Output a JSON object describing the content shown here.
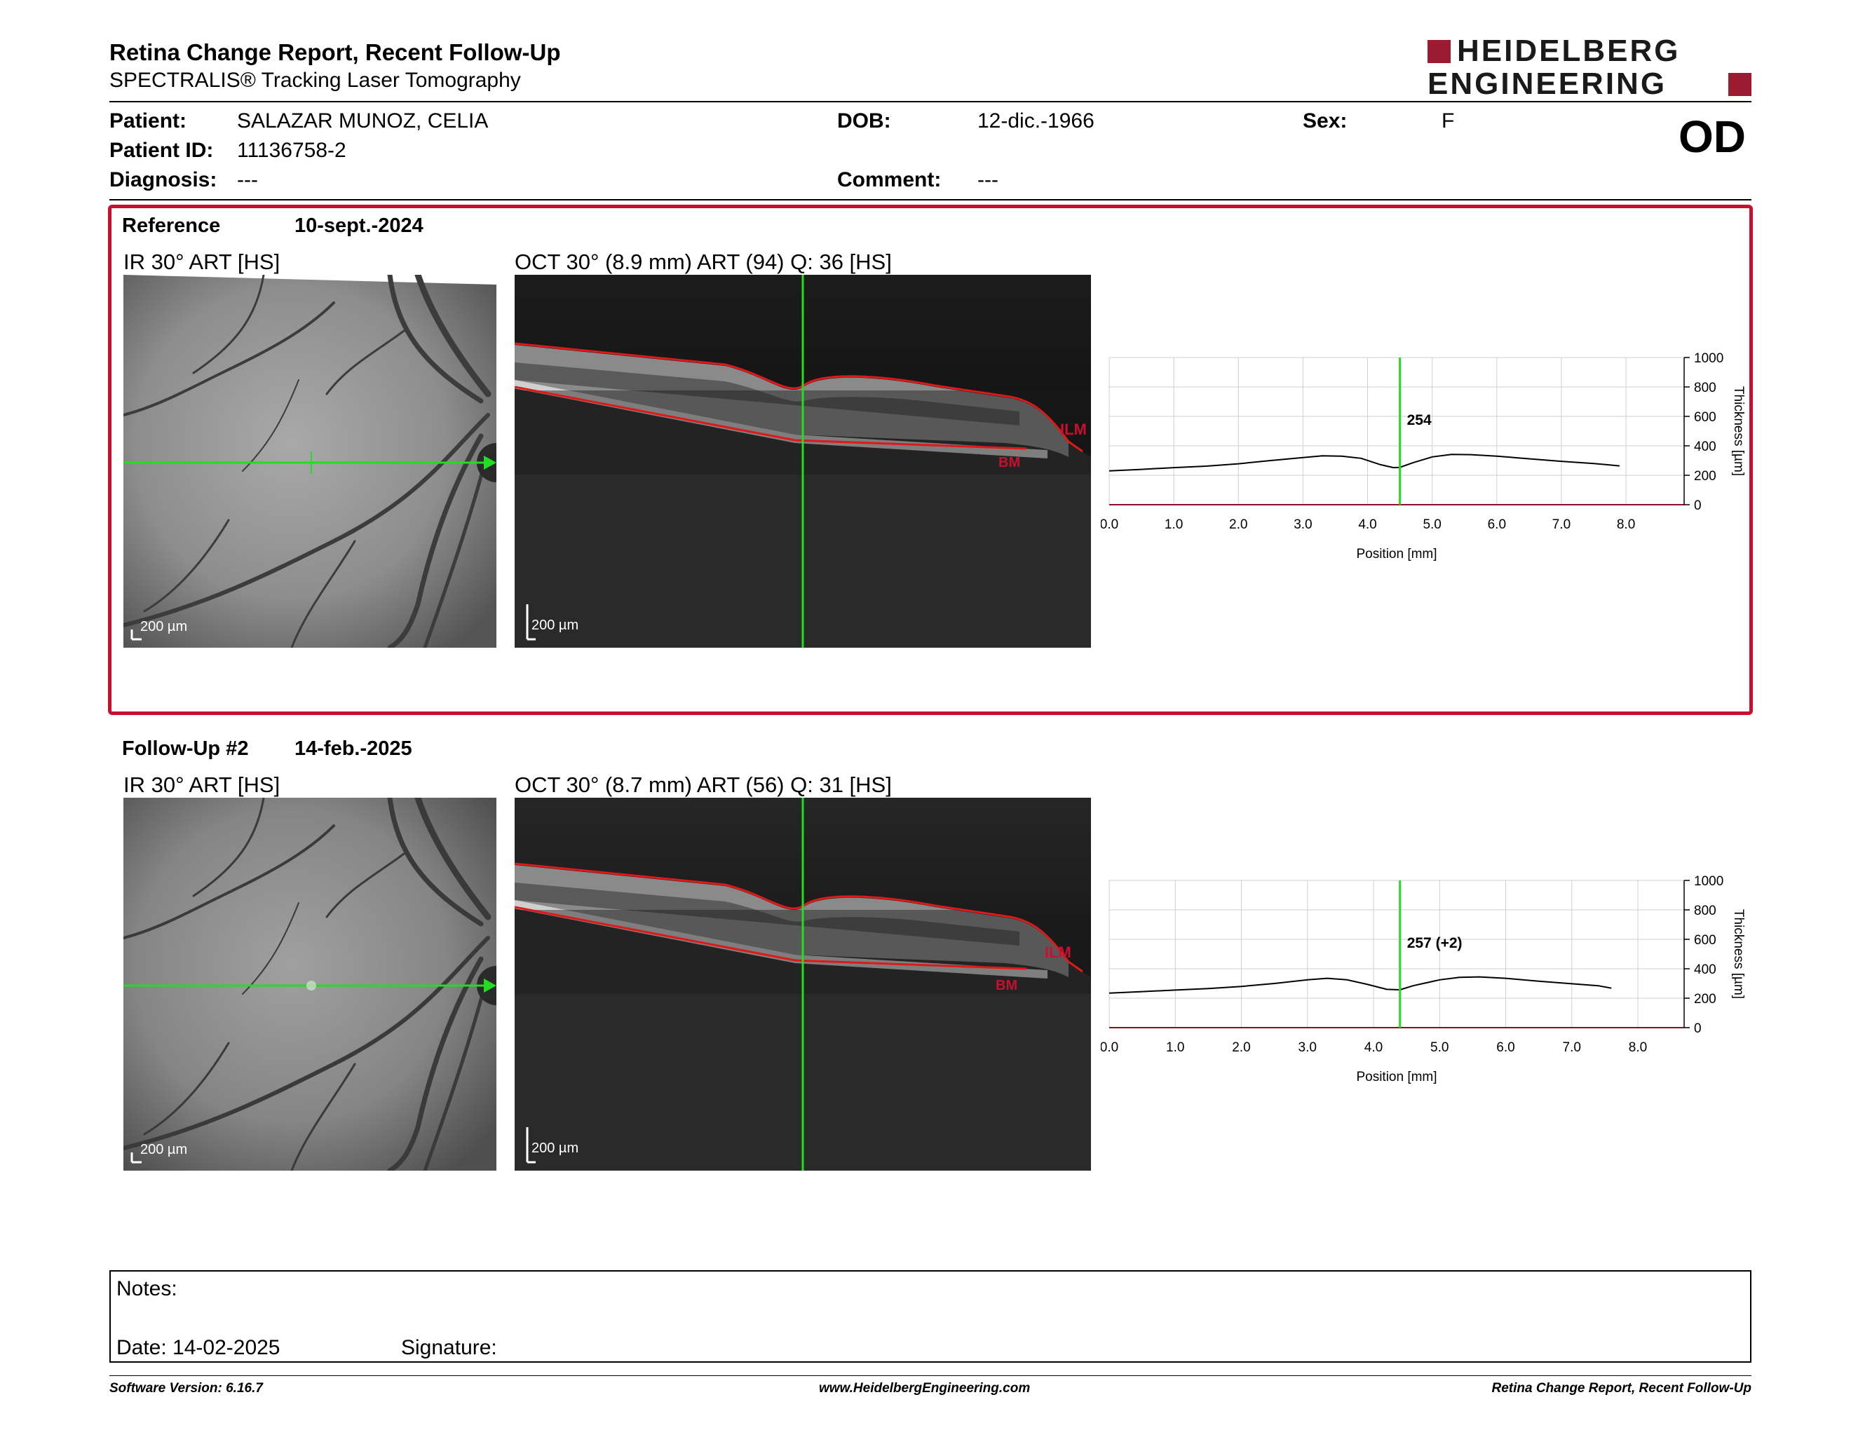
{
  "header": {
    "title": "Retina Change Report, Recent Follow-Up",
    "subtitle": "SPECTRALIS® Tracking Laser Tomography",
    "logo_line1": "HEIDELBERG",
    "logo_line2": "ENGINEERING"
  },
  "patient": {
    "patient_label": "Patient:",
    "patient_value": "SALAZAR MUNOZ, CELIA",
    "id_label": "Patient ID:",
    "id_value": "11136758-2",
    "diagnosis_label": "Diagnosis:",
    "diagnosis_value": "---",
    "dob_label": "DOB:",
    "dob_value": "12-dic.-1966",
    "comment_label": "Comment:",
    "comment_value": "---",
    "sex_label": "Sex:",
    "sex_value": "F",
    "eye": "OD"
  },
  "reference": {
    "label": "Reference",
    "date": "10-sept.-2024",
    "ir_title": "IR 30° ART [HS]",
    "oct_title": "OCT 30° (8.9 mm) ART (94) Q: 36 [HS]",
    "scale_label": "200 µm",
    "ilm_label": "ILM",
    "bm_label": "BM",
    "marker_value": "254"
  },
  "followup": {
    "label": "Follow-Up #2",
    "date": "14-feb.-2025",
    "ir_title": "IR 30° ART [HS]",
    "oct_title": "OCT 30° (8.7 mm) ART (56) Q: 31 [HS]",
    "scale_label": "200 µm",
    "ilm_label": "ILM",
    "bm_label": "BM",
    "marker_value": "257 (+2)"
  },
  "chart_data": [
    {
      "type": "line",
      "xlabel": "Position [mm]",
      "ylabel": "Thickness [µm]",
      "xlim": [
        0,
        8.9
      ],
      "ylim": [
        0,
        1000
      ],
      "xticks": [
        "0.0",
        "1.0",
        "2.0",
        "3.0",
        "4.0",
        "5.0",
        "6.0",
        "7.0",
        "8.0"
      ],
      "yticks": [
        "0",
        "200",
        "400",
        "600",
        "800",
        "1000"
      ],
      "marker_x": 4.5,
      "grid": true,
      "x": [
        0.0,
        0.5,
        1.0,
        1.5,
        2.0,
        2.5,
        3.0,
        3.3,
        3.6,
        3.9,
        4.2,
        4.4,
        4.5,
        4.7,
        5.0,
        5.3,
        5.6,
        6.0,
        6.5,
        7.0,
        7.5,
        7.9
      ],
      "y": [
        230,
        240,
        252,
        262,
        278,
        300,
        320,
        332,
        330,
        315,
        272,
        252,
        254,
        285,
        325,
        342,
        340,
        330,
        312,
        295,
        280,
        264
      ]
    },
    {
      "type": "line",
      "xlabel": "Position [mm]",
      "ylabel": "Thickness [µm]",
      "xlim": [
        0,
        8.7
      ],
      "ylim": [
        0,
        1000
      ],
      "xticks": [
        "0.0",
        "1.0",
        "2.0",
        "3.0",
        "4.0",
        "5.0",
        "6.0",
        "7.0",
        "8.0"
      ],
      "yticks": [
        "0",
        "200",
        "400",
        "600",
        "800",
        "1000"
      ],
      "marker_x": 4.4,
      "grid": true,
      "x": [
        0.0,
        0.5,
        1.0,
        1.5,
        2.0,
        2.5,
        3.0,
        3.3,
        3.6,
        3.9,
        4.2,
        4.4,
        4.6,
        5.0,
        5.3,
        5.6,
        6.0,
        6.5,
        7.0,
        7.4,
        7.6
      ],
      "y": [
        235,
        245,
        255,
        265,
        280,
        300,
        325,
        335,
        325,
        295,
        260,
        257,
        285,
        325,
        342,
        345,
        335,
        315,
        298,
        285,
        268
      ]
    }
  ],
  "notes": {
    "notes_label": "Notes:",
    "date_label": "Date: 14-02-2025",
    "signature_label": "Signature:"
  },
  "footer": {
    "version": "Software Version: 6.16.7",
    "url": "www.HeidelbergEngineering.com",
    "report": "Retina Change Report, Recent Follow-Up"
  }
}
